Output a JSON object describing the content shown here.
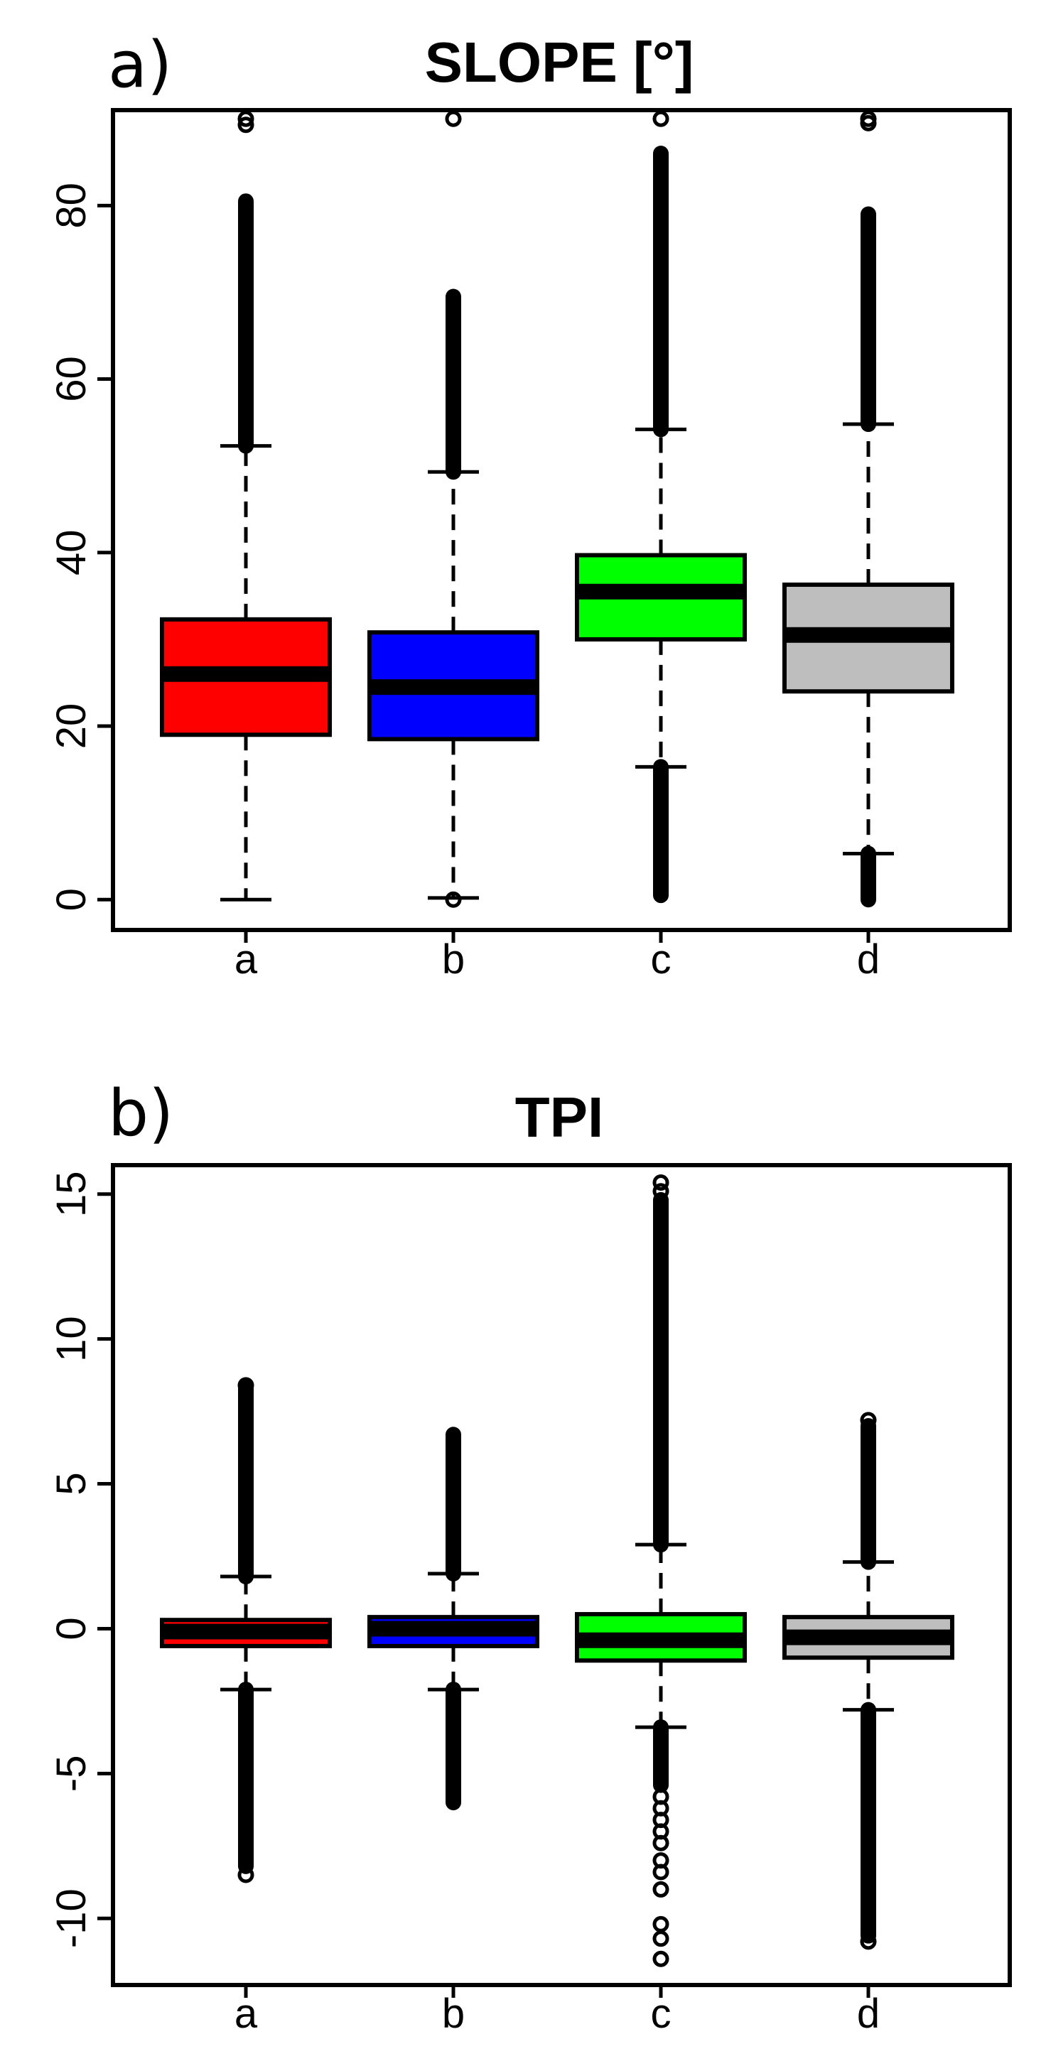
{
  "chart_data": [
    {
      "type": "boxplot",
      "panel_label": "a)",
      "title": "SLOPE [°]",
      "xlabel": "",
      "ylabel": "",
      "categories": [
        "a",
        "b",
        "c",
        "d"
      ],
      "ylim": [
        -3.5,
        91
      ],
      "yticks": [
        0,
        20,
        40,
        60,
        80
      ],
      "ytick_labels": [
        "0",
        "20",
        "40",
        "60",
        "80"
      ],
      "grid": false,
      "boxes": [
        {
          "name": "a",
          "color": "#ff0000",
          "whisker_low": 0,
          "q1": 19,
          "median": 26,
          "q3": 32.3,
          "whisker_high": 52.3,
          "outliers_low": [],
          "outliers_high_range": [
            52.3,
            80.5
          ],
          "outliers_high_points": [
            89.3,
            90
          ]
        },
        {
          "name": "b",
          "color": "#0000ff",
          "whisker_low": 0.2,
          "q1": 18.5,
          "median": 24.5,
          "q3": 30.8,
          "whisker_high": 49.3,
          "outliers_low": [
            0
          ],
          "outliers_high_range": [
            49.3,
            69.5
          ],
          "outliers_high_points": [
            90
          ]
        },
        {
          "name": "c",
          "color": "#00ff00",
          "whisker_low": 15.3,
          "q1": 30,
          "median": 35.5,
          "q3": 39.7,
          "whisker_high": 54.2,
          "outliers_low_range": [
            0.5,
            15.3
          ],
          "outliers_high_range": [
            54.2,
            86
          ],
          "outliers_high_points": [
            90
          ]
        },
        {
          "name": "d",
          "color": "#bebebe",
          "whisker_low": 5.3,
          "q1": 24,
          "median": 30.5,
          "q3": 36.3,
          "whisker_high": 54.8,
          "outliers_low_range": [
            0,
            5.3
          ],
          "outliers_high_range": [
            54.8,
            79
          ],
          "outliers_high_points": [
            89.5,
            90
          ]
        }
      ]
    },
    {
      "type": "boxplot",
      "panel_label": "b)",
      "title": "TPI",
      "xlabel": "",
      "ylabel": "",
      "categories": [
        "a",
        "b",
        "c",
        "d"
      ],
      "ylim": [
        -12.3,
        16
      ],
      "yticks": [
        -10,
        -5,
        0,
        5,
        10,
        15
      ],
      "ytick_labels": [
        "-10",
        "-5",
        "0",
        "5",
        "10",
        "15"
      ],
      "grid": false,
      "boxes": [
        {
          "name": "a",
          "color": "#ff0000",
          "whisker_low": -2.1,
          "q1": -0.6,
          "median": -0.1,
          "q3": 0.3,
          "whisker_high": 1.8,
          "outliers_low_range": [
            -8.2,
            -2.1
          ],
          "outliers_low_points": [
            -8.5
          ],
          "outliers_high_range": [
            1.8,
            8.3
          ],
          "outliers_high_points": [
            8.4
          ]
        },
        {
          "name": "b",
          "color": "#0000ff",
          "whisker_low": -2.1,
          "q1": -0.6,
          "median": 0,
          "q3": 0.4,
          "whisker_high": 1.9,
          "outliers_low_range": [
            -6.0,
            -2.1
          ],
          "outliers_high_range": [
            1.9,
            6.7
          ]
        },
        {
          "name": "c",
          "color": "#00ff00",
          "whisker_low": -3.4,
          "q1": -1.1,
          "median": -0.4,
          "q3": 0.5,
          "whisker_high": 2.9,
          "outliers_low_range": [
            -5.4,
            -3.4
          ],
          "outliers_low_points": [
            -5.8,
            -6.2,
            -6.6,
            -7.0,
            -7.4,
            -8.0,
            -8.4,
            -9.0,
            -10.2,
            -10.7,
            -11.4
          ],
          "outliers_high_range": [
            2.9,
            14.8
          ],
          "outliers_high_points": [
            15.1,
            15.4
          ]
        },
        {
          "name": "d",
          "color": "#bebebe",
          "whisker_low": -2.8,
          "q1": -1.0,
          "median": -0.3,
          "q3": 0.4,
          "whisker_high": 2.3,
          "outliers_low_range": [
            -10.6,
            -2.8
          ],
          "outliers_low_points": [
            -10.8
          ],
          "outliers_high_range": [
            2.3,
            7.0
          ],
          "outliers_high_points": [
            7.2
          ]
        }
      ]
    }
  ]
}
